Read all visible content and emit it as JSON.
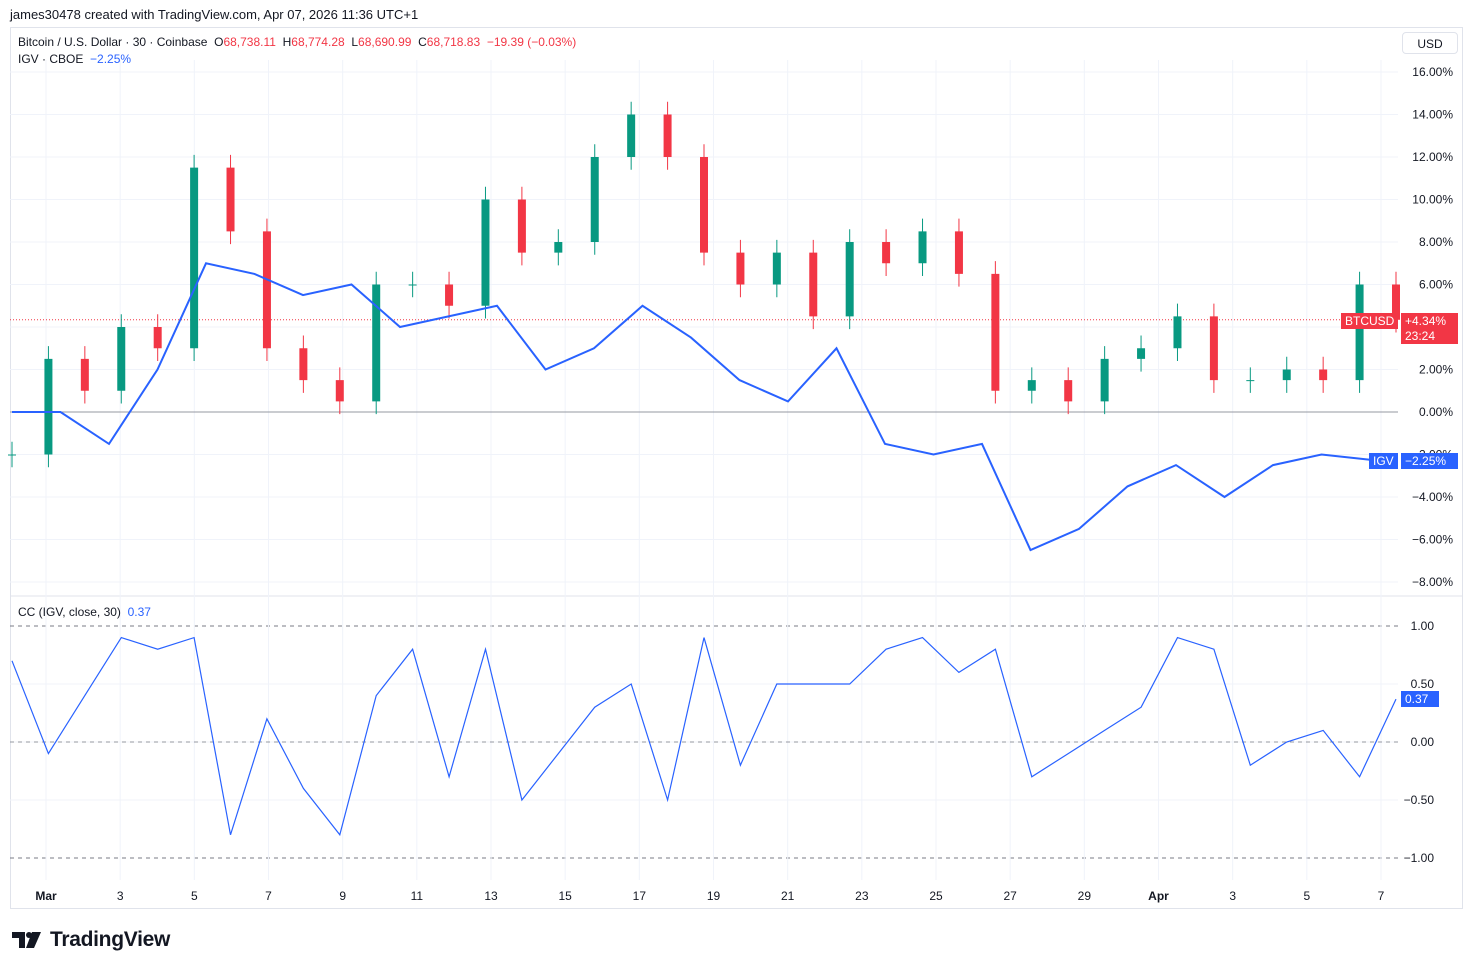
{
  "header": {
    "text": "james30478 created with TradingView.com, Apr 07, 2026 11:36 UTC+1"
  },
  "legend": {
    "symbol": "Bitcoin / U.S. Dollar · 30 · Coinbase",
    "o_label": "O",
    "o_value": "68,738.11",
    "h_label": "H",
    "h_value": "68,774.28",
    "l_label": "L",
    "l_value": "68,690.99",
    "c_label": "C",
    "c_value": "68,718.83",
    "change": "−19.39 (−0.03%)",
    "igv_label": "IGV · CBOE",
    "igv_value": "−2.25%",
    "cc_label": "CC (IGV, close, 30)",
    "cc_value": "0.37"
  },
  "currency_button": "USD",
  "tags": {
    "btc_name": "BTCUSD",
    "btc_value": "+4.34%",
    "btc_timer": "23:24",
    "igv_name": "IGV",
    "igv_value": "−2.25%",
    "cc_value": "0.37"
  },
  "brand": {
    "name": "TradingView"
  },
  "colors": {
    "up": "#089981",
    "down": "#f23645",
    "igv": "#2962ff",
    "cc": "#2962ff"
  },
  "chart_data": [
    {
      "type": "candlestick",
      "name": "BTCUSD",
      "y_axis_unit": "%",
      "ylim": [
        -8,
        16
      ],
      "y_ticks": [
        "16.00%",
        "14.00%",
        "12.00%",
        "10.00%",
        "8.00%",
        "6.00%",
        "4.00%",
        "2.00%",
        "0.00%",
        "−2.00%",
        "−4.00%",
        "−6.00%",
        "−8.00%"
      ],
      "x_ticks": [
        "Mar",
        "3",
        "5",
        "7",
        "9",
        "11",
        "13",
        "15",
        "17",
        "19",
        "21",
        "23",
        "25",
        "27",
        "29",
        "Apr",
        "3",
        "5",
        "7"
      ],
      "current_value": 4.34,
      "series": [
        {
          "name": "BTCUSD",
          "x": [
            "Feb 28",
            "Mar 1",
            "Mar 2",
            "Mar 3",
            "Mar 4",
            "Mar 5",
            "Mar 6",
            "Mar 7",
            "Mar 8",
            "Mar 9",
            "Mar 10",
            "Mar 11",
            "Mar 12",
            "Mar 13",
            "Mar 14",
            "Mar 15",
            "Mar 16",
            "Mar 17",
            "Mar 18",
            "Mar 19",
            "Mar 20",
            "Mar 21",
            "Mar 22",
            "Mar 23",
            "Mar 24",
            "Mar 25",
            "Mar 26",
            "Mar 27",
            "Mar 28",
            "Mar 29",
            "Mar 30",
            "Mar 31",
            "Apr 1",
            "Apr 2",
            "Apr 3",
            "Apr 4",
            "Apr 5",
            "Apr 6",
            "Apr 7"
          ],
          "values": [
            -2.0,
            2.5,
            1.0,
            4.0,
            3.0,
            11.5,
            8.5,
            3.0,
            1.5,
            0.5,
            6.0,
            6.0,
            5.0,
            10.0,
            7.5,
            8.0,
            12.0,
            14.0,
            12.0,
            7.5,
            6.0,
            7.5,
            4.5,
            8.0,
            7.0,
            8.5,
            6.5,
            1.0,
            1.5,
            0.5,
            2.5,
            3.0,
            4.5,
            1.5,
            1.5,
            2.0,
            1.5,
            6.0,
            4.34
          ]
        }
      ]
    },
    {
      "type": "line",
      "name": "IGV",
      "y_axis_unit": "%",
      "current_value": -2.25,
      "series": [
        {
          "name": "IGV",
          "x": [
            "Feb 28",
            "Mar 2",
            "Mar 3",
            "Mar 4",
            "Mar 5",
            "Mar 6",
            "Mar 8",
            "Mar 9",
            "Mar 10",
            "Mar 11",
            "Mar 12",
            "Mar 13",
            "Mar 16",
            "Mar 17",
            "Mar 18",
            "Mar 19",
            "Mar 20",
            "Mar 23",
            "Mar 24",
            "Mar 25",
            "Mar 26",
            "Mar 27",
            "Mar 30",
            "Mar 31",
            "Apr 1",
            "Apr 2",
            "Apr 3",
            "Apr 6",
            "Apr 7"
          ],
          "values": [
            0.0,
            0.0,
            -1.5,
            2.0,
            7.0,
            6.5,
            5.5,
            6.0,
            4.0,
            4.5,
            5.0,
            2.0,
            3.0,
            5.0,
            3.5,
            1.5,
            0.5,
            3.0,
            -1.5,
            -2.0,
            -1.5,
            -6.5,
            -5.5,
            -3.5,
            -2.5,
            -4.0,
            -2.5,
            -2.0,
            -2.25
          ]
        }
      ]
    },
    {
      "type": "line",
      "name": "CC (IGV, close, 30)",
      "ylim": [
        -1.0,
        1.0
      ],
      "y_ticks": [
        "1.00",
        "0.50",
        "0.00",
        "−0.50",
        "−1.00"
      ],
      "current_value": 0.37,
      "series": [
        {
          "name": "CC (IGV, close, 30)",
          "x": [
            "Feb 28",
            "Mar 1",
            "Mar 2",
            "Mar 3",
            "Mar 4",
            "Mar 5",
            "Mar 6",
            "Mar 7",
            "Mar 8",
            "Mar 9",
            "Mar 10",
            "Mar 11",
            "Mar 12",
            "Mar 13",
            "Mar 14",
            "Mar 15",
            "Mar 16",
            "Mar 17",
            "Mar 18",
            "Mar 19",
            "Mar 20",
            "Mar 21",
            "Mar 22",
            "Mar 23",
            "Mar 24",
            "Mar 25",
            "Mar 26",
            "Mar 27",
            "Mar 28",
            "Mar 29",
            "Mar 30",
            "Mar 31",
            "Apr 1",
            "Apr 2",
            "Apr 3",
            "Apr 4",
            "Apr 5",
            "Apr 6",
            "Apr 7"
          ],
          "values": [
            0.7,
            -0.1,
            0.4,
            0.9,
            0.8,
            0.9,
            -0.8,
            0.2,
            -0.4,
            -0.8,
            0.4,
            0.8,
            -0.3,
            0.8,
            -0.5,
            -0.1,
            0.3,
            0.5,
            -0.5,
            0.9,
            -0.2,
            0.5,
            0.5,
            0.5,
            0.8,
            0.9,
            0.6,
            0.8,
            -0.3,
            -0.1,
            0.1,
            0.3,
            0.9,
            0.8,
            -0.2,
            0.0,
            0.1,
            -0.3,
            0.37
          ]
        }
      ]
    }
  ]
}
